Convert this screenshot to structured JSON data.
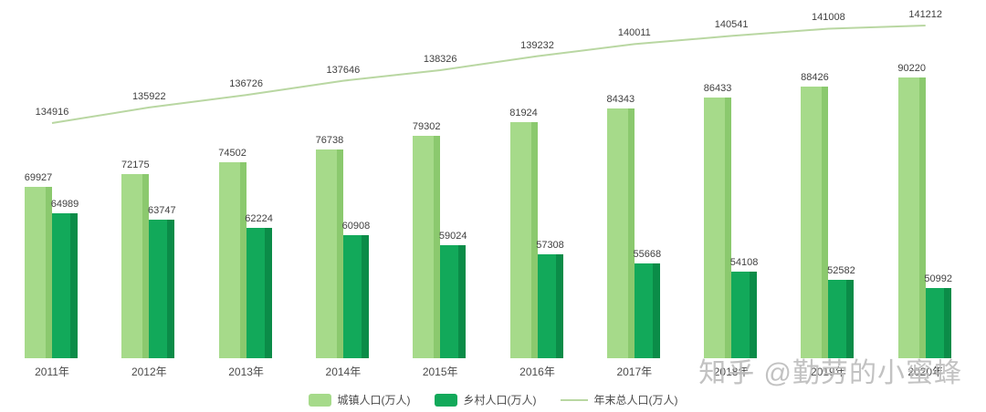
{
  "watermark": {
    "text": "知乎 @勤劳的小蜜蜂"
  },
  "legend": {
    "urban_label": "城镇人口(万人)",
    "rural_label": "乡村人口(万人)",
    "total_label": "年末总人口(万人)"
  },
  "chart_data": {
    "type": "combo",
    "title": "",
    "categories": [
      "2011年",
      "2012年",
      "2013年",
      "2014年",
      "2015年",
      "2016年",
      "2017年",
      "2018年",
      "2019年",
      "2020年"
    ],
    "series": [
      {
        "name": "城镇人口(万人)",
        "type": "bar",
        "color_main": "#a6da8a",
        "color_edge": "#8bc96e",
        "values": [
          69927,
          72175,
          74502,
          76738,
          79302,
          81924,
          84343,
          86433,
          88426,
          90220
        ]
      },
      {
        "name": "乡村人口(万人)",
        "type": "bar",
        "color_main": "#12a95a",
        "color_edge": "#0b8c48",
        "values": [
          64989,
          63747,
          62224,
          60908,
          59024,
          57308,
          55668,
          54108,
          52582,
          50992
        ]
      },
      {
        "name": "年末总人口(万人)",
        "type": "line",
        "color": "#b9d7a2",
        "values": [
          134916,
          135922,
          136726,
          137646,
          138326,
          139232,
          140011,
          140541,
          141008,
          141212
        ]
      }
    ],
    "data_labels": true,
    "grid": false,
    "legend_position": "bottom",
    "bar_axis_range": [
      38000,
      92220
    ],
    "line_axis_range": [
      134916,
      141212
    ]
  }
}
